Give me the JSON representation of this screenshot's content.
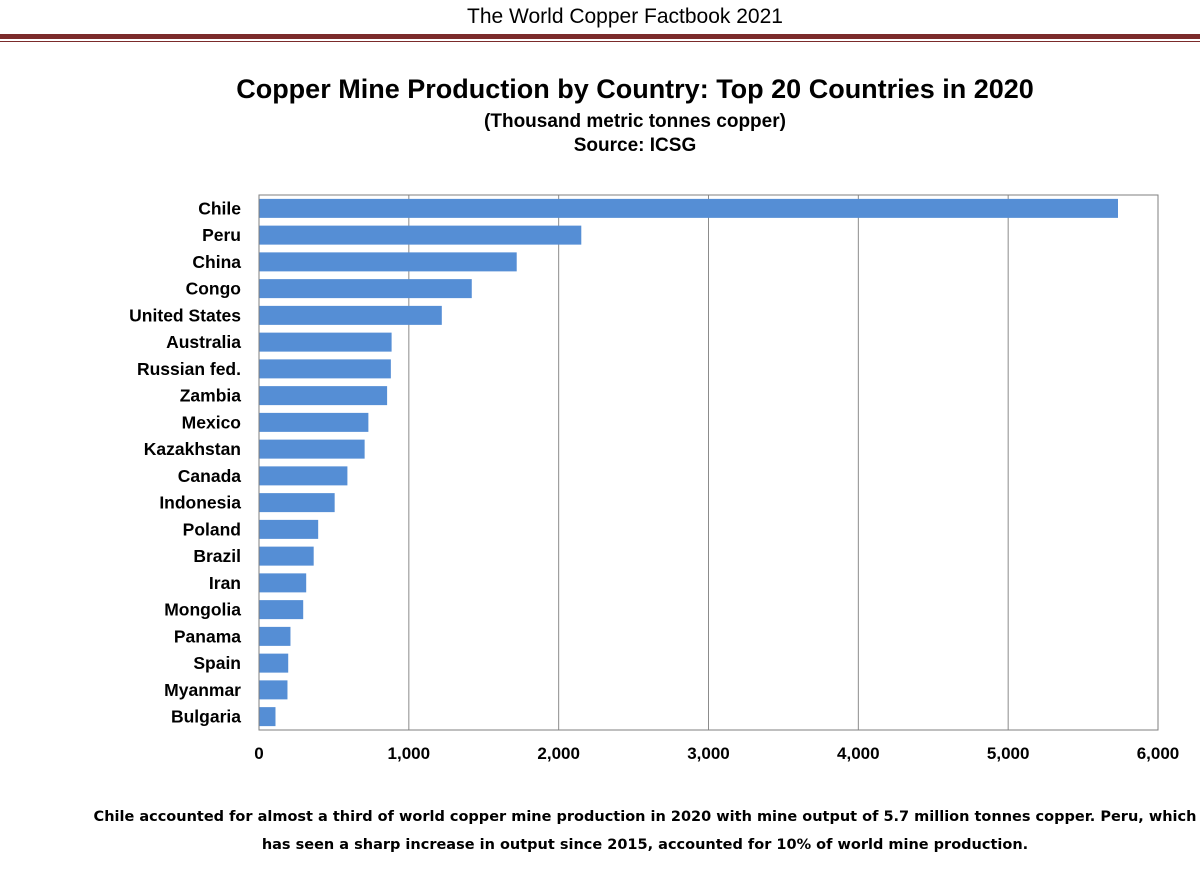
{
  "header": {
    "title": "The World Copper Factbook 2021"
  },
  "chart_data": {
    "type": "bar",
    "orientation": "horizontal",
    "title": "Copper Mine Production by Country: Top 20 Countries in 2020",
    "subtitle": "(Thousand metric tonnes copper)",
    "source": "Source: ICSG",
    "categories": [
      "Chile",
      "Peru",
      "China",
      "Congo",
      "United States",
      "Australia",
      "Russian fed.",
      "Zambia",
      "Mexico",
      "Kazakhstan",
      "Canada",
      "Indonesia",
      "Poland",
      "Brazil",
      "Iran",
      "Mongolia",
      "Panama",
      "Spain",
      "Myanmar",
      "Bulgaria"
    ],
    "values": [
      5733,
      2151,
      1720,
      1420,
      1220,
      885,
      880,
      855,
      730,
      705,
      590,
      505,
      395,
      365,
      315,
      295,
      210,
      195,
      190,
      110
    ],
    "xlim": [
      0,
      6000
    ],
    "xticks": [
      0,
      1000,
      2000,
      3000,
      4000,
      5000,
      6000
    ],
    "xtick_labels": [
      "0",
      "1,000",
      "2,000",
      "3,000",
      "4,000",
      "5,000",
      "6,000"
    ],
    "grid": "vertical",
    "legend": "none",
    "bar_color": "#558ed5"
  },
  "footnote": {
    "line1": "Chile accounted for almost a third of world copper mine production in 2020 with mine output of 5.7 million tonnes copper. Peru, which",
    "line2": "has seen a sharp increase in output since 2015, accounted for 10% of world mine production."
  }
}
